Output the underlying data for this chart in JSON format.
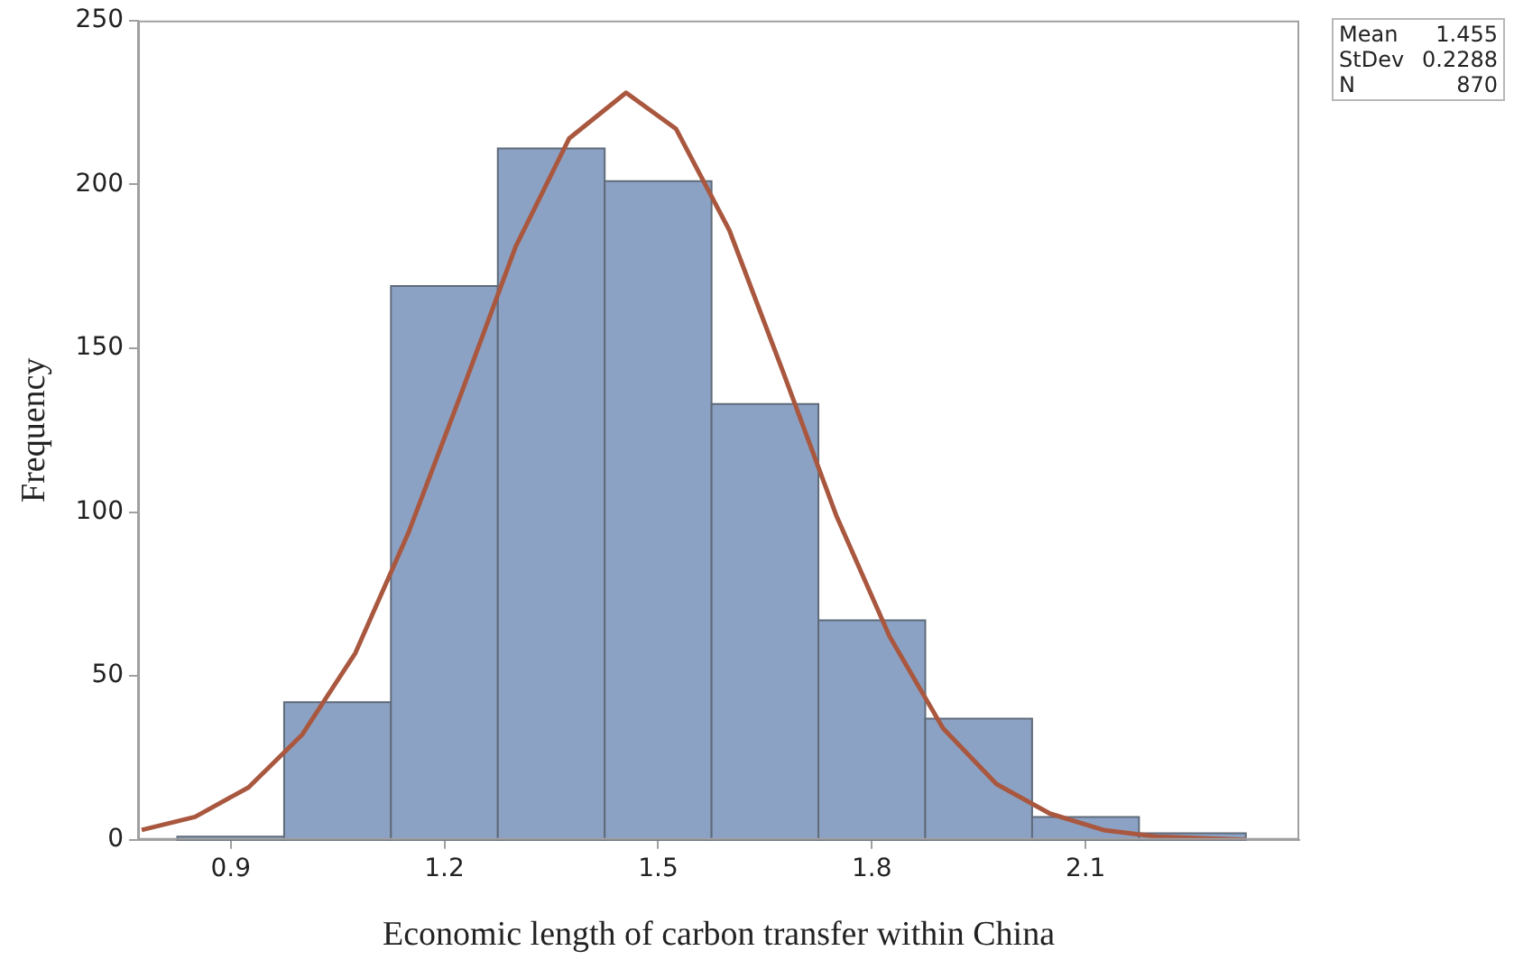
{
  "chart_data": {
    "type": "histogram",
    "xlabel": "Economic length of carbon transfer within China",
    "ylabel": "Frequency",
    "bins": [
      0.825,
      0.975,
      1.125,
      1.275,
      1.425,
      1.575,
      1.725,
      1.875,
      2.025,
      2.175,
      2.325
    ],
    "values": [
      1,
      42,
      169,
      211,
      201,
      133,
      67,
      37,
      7,
      2
    ],
    "color": "#8ca2c4",
    "series": [
      {
        "type": "line",
        "color": "#a9583f",
        "marker": "none",
        "x": [
          0.775,
          0.85,
          0.925,
          1.0,
          1.075,
          1.15,
          1.225,
          1.3,
          1.375,
          1.455,
          1.525,
          1.6,
          1.675,
          1.75,
          1.825,
          1.9,
          1.975,
          2.05,
          2.125,
          2.2,
          2.325
        ],
        "values": [
          3,
          7,
          16,
          32,
          57,
          94,
          137,
          181,
          214,
          228,
          217,
          186,
          143,
          99,
          62,
          34,
          17,
          8,
          3,
          1,
          0
        ]
      }
    ],
    "xlim": [
      0.77,
      2.4
    ],
    "xticks": [
      0.9,
      1.2,
      1.5,
      1.8,
      2.1
    ],
    "ylim": [
      0,
      250
    ],
    "yticks": [
      0,
      50,
      100,
      150,
      200,
      250
    ],
    "grid": false,
    "legend": false,
    "annotations": [
      "Mean 1.455",
      "StDev 0.2288",
      "N 870"
    ]
  }
}
